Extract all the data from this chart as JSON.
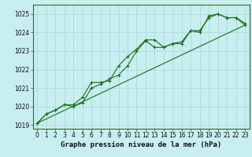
{
  "bg_color": "#c8eef0",
  "grid_color": "#b0dde0",
  "line_color": "#1a6e1a",
  "xlabel": "Graphe pression niveau de la mer (hPa)",
  "ylim": [
    1018.8,
    1025.5
  ],
  "xlim": [
    -0.5,
    23.5
  ],
  "yticks": [
    1019,
    1020,
    1021,
    1022,
    1023,
    1024,
    1025
  ],
  "xticks": [
    0,
    1,
    2,
    3,
    4,
    5,
    6,
    7,
    8,
    9,
    10,
    11,
    12,
    13,
    14,
    15,
    16,
    17,
    18,
    19,
    20,
    21,
    22,
    23
  ],
  "line1_x": [
    0,
    1,
    2,
    3,
    4,
    5,
    6,
    7,
    8,
    9,
    10,
    11,
    12,
    13,
    14,
    15,
    16,
    17,
    18,
    19,
    20,
    21,
    22,
    23
  ],
  "line1_y": [
    1019.1,
    1019.6,
    1019.8,
    1020.1,
    1020.1,
    1020.5,
    1021.3,
    1021.3,
    1021.4,
    1022.2,
    1022.7,
    1023.1,
    1023.6,
    1023.6,
    1023.2,
    1023.4,
    1023.4,
    1024.1,
    1024.0,
    1024.9,
    1025.0,
    1024.8,
    1024.8,
    1024.4
  ],
  "line2_x": [
    0,
    1,
    2,
    3,
    4,
    5,
    6,
    7,
    8,
    9,
    10,
    11,
    12,
    13,
    14,
    15,
    16,
    17,
    18,
    19,
    20,
    21,
    22,
    23
  ],
  "line2_y": [
    1019.1,
    1019.6,
    1019.8,
    1020.1,
    1020.0,
    1020.2,
    1021.0,
    1021.2,
    1021.5,
    1021.7,
    1022.2,
    1023.0,
    1023.55,
    1023.2,
    1023.2,
    1023.4,
    1023.5,
    1024.1,
    1024.1,
    1024.8,
    1025.0,
    1024.8,
    1024.8,
    1024.5
  ],
  "trend_x": [
    0,
    23
  ],
  "trend_y": [
    1019.1,
    1024.4
  ],
  "tick_fontsize": 5.5,
  "label_fontsize": 6.5,
  "marker": "+"
}
